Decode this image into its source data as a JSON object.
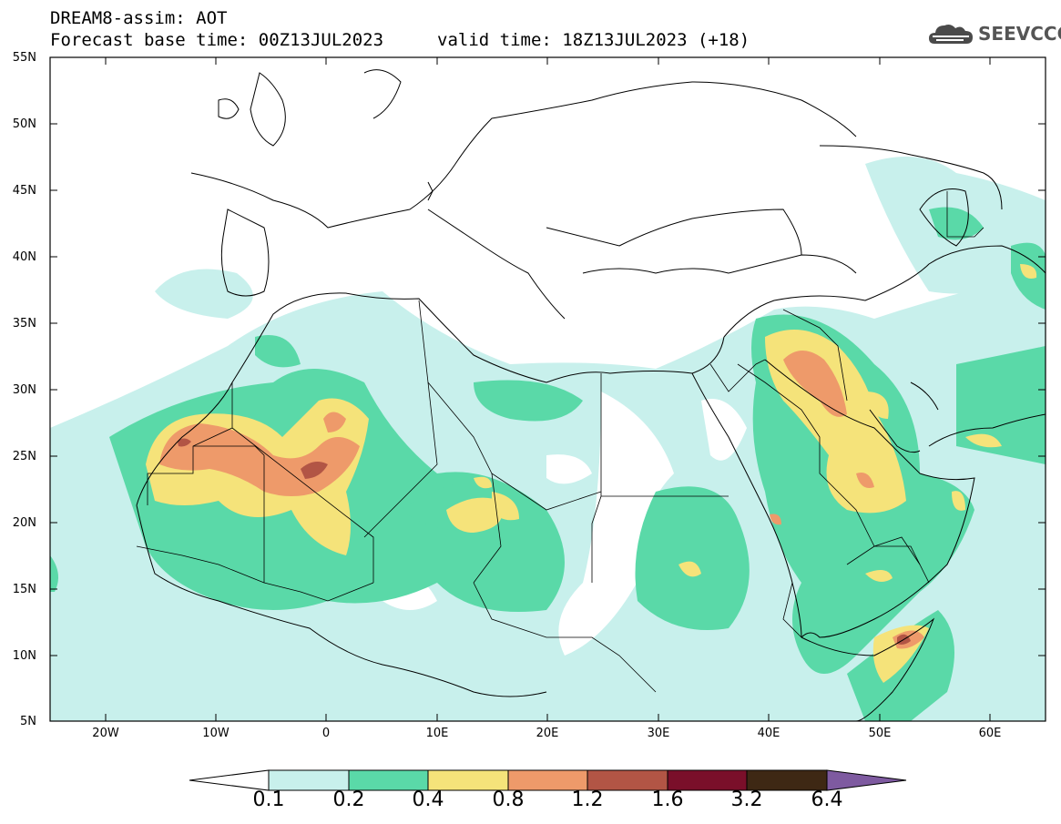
{
  "header": {
    "line1": "DREAM8-assim: AOT",
    "line2": "Forecast base time: 00Z13JUL2023",
    "line3": "valid time: 18Z13JUL2023 (+18)"
  },
  "logo": {
    "text": "SEEVCCC",
    "icon": "cloud-icon"
  },
  "map": {
    "lat_labels": [
      "55N",
      "50N",
      "45N",
      "40N",
      "35N",
      "30N",
      "25N",
      "20N",
      "15N",
      "10N",
      "5N"
    ],
    "lon_labels": [
      "20W",
      "10W",
      "0",
      "10E",
      "20E",
      "30E",
      "40E",
      "50E",
      "60E"
    ],
    "lon_range": [
      -25,
      65
    ],
    "lat_range": [
      5,
      55
    ],
    "variable": "AOT"
  },
  "colorbar": {
    "levels": [
      "0.1",
      "0.2",
      "0.4",
      "0.8",
      "1.2",
      "1.6",
      "3.2",
      "6.4"
    ],
    "colors": [
      "#c8f0ec",
      "#5ad9a8",
      "#f5e37a",
      "#ee9a6a",
      "#b25545",
      "#7a0f2a",
      "#3e2814",
      "#7e5aa0"
    ]
  }
}
